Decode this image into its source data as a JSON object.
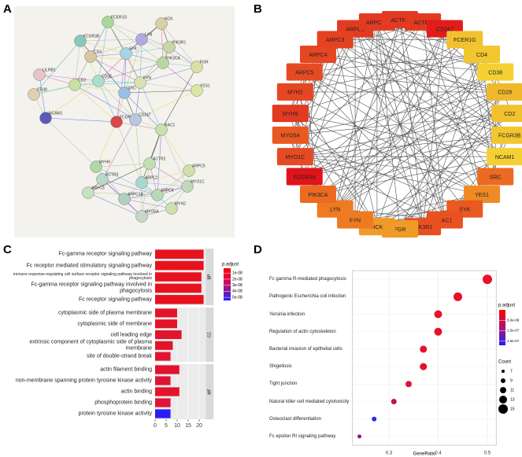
{
  "chart_data": [
    {
      "type": "network",
      "panel": "A",
      "nodes": [
        "FCER1G",
        "HCK",
        "FCGR3B",
        "LYN",
        "PIK3R1",
        "CD4",
        "SYK",
        "PIK3CA",
        "FGR",
        "LILRB1",
        "CD2",
        "CD3E",
        "FYN",
        "CD38",
        "YES1",
        "NCAM1",
        "FCGR3A",
        "CD247",
        "RAC1",
        "MYH9",
        "ACTR2",
        "ARPC5",
        "ACTR3",
        "ARPC2",
        "MYO1C",
        "ARPC3",
        "ARPC4",
        "ARPC1B",
        "MYH2",
        "MYO5A",
        "SRC"
      ]
    },
    {
      "type": "network",
      "panel": "B",
      "nodes": [
        {
          "label": "ARPC2",
          "color": "#e33a22"
        },
        {
          "label": "ARPC1B",
          "color": "#e33a22"
        },
        {
          "label": "ACTR2",
          "color": "#e43a22"
        },
        {
          "label": "ACTR3",
          "color": "#e3391f"
        },
        {
          "label": "CD247",
          "color": "#e11d19"
        },
        {
          "label": "FCER1G",
          "color": "#f2c12e"
        },
        {
          "label": "CD4",
          "color": "#f2c62f"
        },
        {
          "label": "CD38",
          "color": "#f4d033"
        },
        {
          "label": "CD28",
          "color": "#f1b82c"
        },
        {
          "label": "CD2",
          "color": "#f2c12e"
        },
        {
          "label": "FCGR3B",
          "color": "#f3c630"
        },
        {
          "label": "NCAM1",
          "color": "#f5d034"
        },
        {
          "label": "SRC",
          "color": "#ec6a22"
        },
        {
          "label": "YES1",
          "color": "#ef8a25"
        },
        {
          "label": "SYK",
          "color": "#ea5a20"
        },
        {
          "label": "RAC1",
          "color": "#e95220"
        },
        {
          "label": "PIK3R1",
          "color": "#e85020"
        },
        {
          "label": "FGR",
          "color": "#f09a28"
        },
        {
          "label": "HCK",
          "color": "#f09a28"
        },
        {
          "label": "FYN",
          "color": "#ee7a22"
        },
        {
          "label": "LYN",
          "color": "#ee7a22"
        },
        {
          "label": "PIK3CA",
          "color": "#ec6a22"
        },
        {
          "label": "FCGR3A",
          "color": "#e0141a"
        },
        {
          "label": "MYO1C",
          "color": "#e64a22"
        },
        {
          "label": "MYO5A",
          "color": "#ea5a20"
        },
        {
          "label": "MYH9",
          "color": "#e33a22"
        },
        {
          "label": "MYH2",
          "color": "#e64622"
        },
        {
          "label": "ARPC5",
          "color": "#e64a22"
        },
        {
          "label": "ARPC4",
          "color": "#e64622"
        },
        {
          "label": "ARPC3",
          "color": "#e54222"
        }
      ]
    },
    {
      "type": "bar",
      "panel": "C",
      "facets": [
        {
          "name": "BP",
          "categories": [
            "Fc-gamma receptor signaling pathway",
            "Fc receptor mediated stimulatory signaling pathway",
            "immune response-regulating cell surface receptor signaling pathway involved in phagocytosis",
            "Fc-gamma receptor signaling pathway involved in phagocytosis",
            "Fc receptor signaling pathway"
          ],
          "values": [
            22,
            22,
            21,
            21,
            22
          ],
          "colors": [
            "#e8111e",
            "#e8111e",
            "#e8111e",
            "#e8111e",
            "#e8111e"
          ]
        },
        {
          "name": "CC",
          "categories": [
            "cytoplasmic side of plasma membrane",
            "cytoplasmic side of membrane",
            "cell leading edge",
            "extrinsic component of cytoplasmic side of plasma membrane",
            "site of double-strand break"
          ],
          "values": [
            10,
            10,
            12,
            8,
            7
          ],
          "colors": [
            "#e41428",
            "#e41428",
            "#e2142e",
            "#e31428",
            "#e01432"
          ]
        },
        {
          "name": "MF",
          "categories": [
            "actin filament binding",
            "non-membrane spanning protein tyrosine kinase activity",
            "actin binding",
            "phosphoprotein binding",
            "protein tyrosine kinase activity"
          ],
          "values": [
            11,
            7,
            11,
            7,
            7
          ],
          "colors": [
            "#e2142c",
            "#df1434",
            "#e2142c",
            "#de1438",
            "#2a1cf2"
          ]
        }
      ],
      "xlim": [
        0,
        23
      ],
      "xticks": [
        0,
        5,
        10,
        15,
        20
      ],
      "legend_title": "p.adjust",
      "clim": [
        2e-09,
        5.5e-08
      ],
      "cticks": [
        {
          "value": 1e-08,
          "label": "1e-08"
        },
        {
          "value": 2e-08,
          "label": "2e-08"
        },
        {
          "value": 3e-08,
          "label": "3e-08"
        },
        {
          "value": 4e-08,
          "label": "4e-08"
        },
        {
          "value": 5e-08,
          "label": "5e-08"
        }
      ]
    },
    {
      "type": "scatter",
      "panel": "D",
      "categories": [
        "Fc gamma R-mediated phagocytosis",
        "Pathogenic Escherichia coli infection",
        "Yersinia infection",
        "Regulation of actin cytoskeleton",
        "Bacterial invasion of epithelial cells",
        "Shigellosis",
        "Tight junction",
        "Natural killer cell mediated cytotoxicity",
        "Osteoclast differentiation",
        "Fc epsilon RI signaling pathway"
      ],
      "x": [
        0.5,
        0.44,
        0.4,
        0.4,
        0.37,
        0.37,
        0.34,
        0.31,
        0.27,
        0.24
      ],
      "sizes": [
        15,
        14,
        13,
        13,
        12,
        12,
        11,
        10,
        9,
        8
      ],
      "colors": [
        "#e8112a",
        "#e8112a",
        "#e8112a",
        "#e8112a",
        "#e8112a",
        "#e8112a",
        "#e0113a",
        "#c0115a",
        "#2a2ae8",
        "#a01080"
      ],
      "xlabel": "GeneRatio",
      "xlim": [
        0.226,
        0.518
      ],
      "xticks": [
        0.3,
        0.4,
        0.5
      ],
      "color_legend_title": "p.adjust",
      "clim": [
        0,
        1.7e-07
      ],
      "cticks": [
        {
          "value": 5e-08,
          "label": "5.0e-08"
        },
        {
          "value": 1e-07,
          "label": "1.0e-07"
        },
        {
          "value": 1.5e-07,
          "label": "1.5e-07"
        }
      ],
      "size_legend_title": "Count",
      "size_legend": [
        7,
        9,
        11,
        13,
        15
      ]
    }
  ]
}
